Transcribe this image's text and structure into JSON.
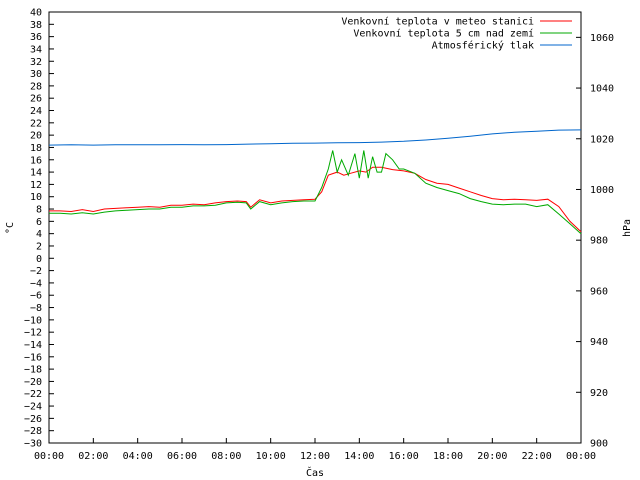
{
  "chart_data": {
    "type": "line",
    "xlabel": "Čas",
    "ylabel": "°C",
    "y2label": "hPa",
    "x_ticks": [
      "00:00",
      "02:00",
      "04:00",
      "06:00",
      "08:00",
      "10:00",
      "12:00",
      "14:00",
      "16:00",
      "18:00",
      "20:00",
      "22:00",
      "00:00"
    ],
    "ylim": [
      -30,
      40
    ],
    "y_tick_step": 2,
    "y2lim": [
      900,
      1070
    ],
    "y2_ticks": [
      900,
      920,
      940,
      960,
      980,
      1000,
      1020,
      1040,
      1060
    ],
    "xlim": [
      0,
      24
    ],
    "legend_position": "top-right",
    "series": [
      {
        "name": "Venkovní teplota v meteo stanici",
        "axis": "left",
        "color": "#ff0000",
        "x": [
          0,
          0.5,
          1,
          1.5,
          2,
          2.5,
          3,
          3.5,
          4,
          4.5,
          5,
          5.5,
          6,
          6.5,
          7,
          7.5,
          8,
          8.5,
          8.9,
          9.1,
          9.5,
          10,
          10.5,
          11,
          11.5,
          12,
          12.3,
          12.6,
          13,
          13.3,
          13.6,
          14,
          14.3,
          14.6,
          15,
          15.5,
          16,
          16.5,
          17,
          17.5,
          18,
          18.5,
          19,
          19.5,
          20,
          20.5,
          21,
          21.5,
          22,
          22.5,
          23,
          23.5,
          24
        ],
        "values": [
          7.7,
          7.7,
          7.6,
          7.9,
          7.6,
          8.0,
          8.1,
          8.2,
          8.3,
          8.4,
          8.3,
          8.6,
          8.6,
          8.8,
          8.7,
          9.0,
          9.2,
          9.3,
          9.2,
          8.3,
          9.5,
          9.0,
          9.3,
          9.4,
          9.5,
          9.6,
          10.8,
          13.5,
          14.0,
          13.5,
          13.8,
          14.2,
          14.0,
          14.8,
          14.8,
          14.4,
          14.2,
          13.8,
          12.8,
          12.2,
          12.0,
          11.4,
          10.8,
          10.2,
          9.7,
          9.5,
          9.6,
          9.5,
          9.4,
          9.6,
          8.4,
          6.0,
          4.3
        ]
      },
      {
        "name": "Venkovní teplota 5 cm nad zemí",
        "axis": "left",
        "color": "#00aa00",
        "x": [
          0,
          0.5,
          1,
          1.5,
          2,
          2.5,
          3,
          3.5,
          4,
          4.5,
          5,
          5.5,
          6,
          6.5,
          7,
          7.5,
          8,
          8.5,
          8.9,
          9.1,
          9.5,
          10,
          10.5,
          11,
          11.5,
          12,
          12.3,
          12.6,
          12.8,
          13,
          13.2,
          13.5,
          13.8,
          14.0,
          14.2,
          14.4,
          14.6,
          14.8,
          15,
          15.2,
          15.5,
          15.8,
          16,
          16.5,
          17,
          17.5,
          18,
          18.5,
          19,
          19.5,
          20,
          20.5,
          21,
          21.5,
          22,
          22.5,
          23,
          23.5,
          24
        ],
        "values": [
          7.3,
          7.3,
          7.2,
          7.4,
          7.2,
          7.5,
          7.7,
          7.8,
          7.9,
          8.0,
          8.0,
          8.3,
          8.3,
          8.5,
          8.5,
          8.6,
          9.0,
          9.1,
          9.0,
          8.0,
          9.2,
          8.7,
          9.0,
          9.2,
          9.3,
          9.3,
          11.5,
          14.5,
          17.5,
          14.0,
          16.0,
          13.5,
          17.0,
          13.0,
          17.5,
          13.0,
          16.5,
          14.0,
          14.0,
          17.0,
          16.0,
          14.5,
          14.5,
          13.8,
          12.2,
          11.5,
          11.0,
          10.5,
          9.7,
          9.2,
          8.8,
          8.7,
          8.8,
          8.8,
          8.4,
          8.7,
          7.2,
          5.6,
          4.0
        ]
      },
      {
        "name": "Atmosférický tlak",
        "axis": "right",
        "color": "#0066cc",
        "x": [
          0,
          1,
          2,
          3,
          4,
          5,
          6,
          7,
          8,
          9,
          10,
          11,
          12,
          13,
          14,
          15,
          16,
          17,
          18,
          19,
          20,
          21,
          22,
          23,
          24
        ],
        "values": [
          1017.5,
          1017.6,
          1017.5,
          1017.6,
          1017.6,
          1017.6,
          1017.7,
          1017.6,
          1017.7,
          1017.9,
          1018.0,
          1018.2,
          1018.3,
          1018.4,
          1018.5,
          1018.7,
          1019.0,
          1019.5,
          1020.2,
          1021.0,
          1021.9,
          1022.6,
          1023.0,
          1023.4,
          1023.5
        ]
      }
    ]
  }
}
